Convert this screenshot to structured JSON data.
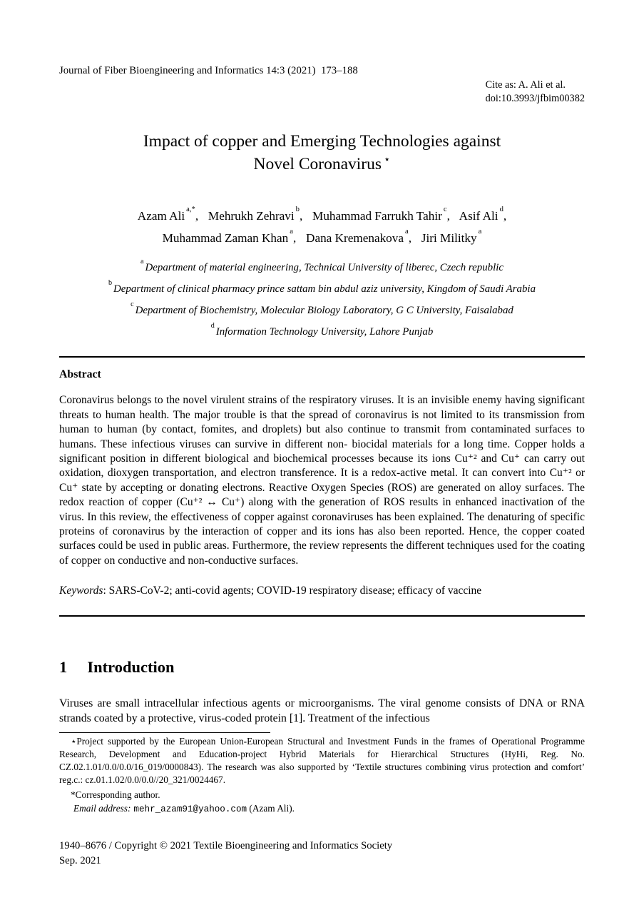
{
  "header": {
    "journal_line": "Journal of Fiber Bioengineering and Informatics 14:3 (2021)  173–188",
    "cite_line": "Cite as: A. Ali et al.",
    "doi_line": "doi:10.3993/jfbim00382"
  },
  "title": {
    "line1": "Impact of copper and Emerging Technologies against",
    "line2": "Novel Coronavirus",
    "star": "⋆"
  },
  "authors": [
    {
      "name": "Azam Ali",
      "sup": "a,*",
      "sep": ","
    },
    {
      "name": "Mehrukh Zehravi",
      "sup": "b",
      "sep": ","
    },
    {
      "name": "Muhammad Farrukh Tahir",
      "sup": "c",
      "sep": ","
    },
    {
      "name": "Asif Ali",
      "sup": "d",
      "sep": ","
    },
    {
      "name": "Muhammad Zaman Khan",
      "sup": "a",
      "sep": ","
    },
    {
      "name": "Dana Kremenakova",
      "sup": "a",
      "sep": ","
    },
    {
      "name": "Jiri Militky",
      "sup": "a",
      "sep": ""
    }
  ],
  "affiliations": [
    {
      "sup": "a",
      "text": "Department of material engineering, Technical University of liberec, Czech republic"
    },
    {
      "sup": "b",
      "text": "Department of clinical pharmacy prince sattam bin abdul aziz university, Kingdom of Saudi Arabia"
    },
    {
      "sup": "c",
      "text": "Department of Biochemistry, Molecular Biology Laboratory, G C University, Faisalabad"
    },
    {
      "sup": "d",
      "text": "Information Technology University, Lahore Punjab"
    }
  ],
  "abstract": {
    "heading": "Abstract",
    "text": "Coronavirus belongs to the novel virulent strains of the respiratory viruses. It is an invisible enemy having significant threats to human health. The major trouble is that the spread of coronavirus is not limited to its transmission from human to human (by contact, fomites, and droplets) but also continue to transmit from contaminated surfaces to humans. These infectious viruses can survive in different non- biocidal materials for a long time. Copper holds a significant position in different biological and biochemical processes because its ions Cu⁺² and Cu⁺ can carry out oxidation, dioxygen transportation, and electron transference. It is a redox-active metal. It can convert into Cu⁺² or Cu⁺ state by accepting or donating electrons. Reactive Oxygen Species (ROS) are generated on alloy surfaces. The redox reaction of copper (Cu⁺² ↔ Cu⁺) along with the generation of ROS results in enhanced inactivation of the virus. In this review, the effectiveness of copper against coronaviruses has been explained. The denaturing of specific proteins of coronavirus by the interaction of copper and its ions has also been reported. Hence, the copper coated surfaces could be used in public areas. Furthermore, the review represents the different techniques used for the coating of copper on conductive and non-conductive surfaces.",
    "keywords_label": "Keywords",
    "keywords_text": ": SARS-CoV-2; anti-covid agents; COVID-19 respiratory disease; efficacy of vaccine"
  },
  "intro": {
    "number": "1",
    "title": "Introduction",
    "text": "Viruses are small intracellular infectious agents or microorganisms. The viral genome consists of DNA or RNA strands coated by a protective, virus-coded protein [1]. Treatment of the infectious"
  },
  "footnotes": {
    "project": "⋆Project supported by the European Union-European Structural and Investment Funds in the frames of Operational Programme Research, Development and Education-project Hybrid Materials for Hierarchical Structures (HyHi, Reg. No. CZ.02.1.01/0.0/0.0/16_019/0000843). The research was also supported by ‘Textile structures combining virus protection and comfort’ reg.c.: cz.01.1.02/0.0/0.0//20_321/0024467.",
    "corresponding": "*Corresponding author.",
    "email_label": "Email address:",
    "email": "mehr_azam91@yahoo.com",
    "email_suffix": " (Azam Ali)."
  },
  "footer": {
    "issn_line": "1940–8676 / Copyright © 2021 Textile Bioengineering and Informatics Society",
    "date_line": "Sep. 2021"
  },
  "colors": {
    "text": "#000000",
    "background": "#ffffff"
  }
}
